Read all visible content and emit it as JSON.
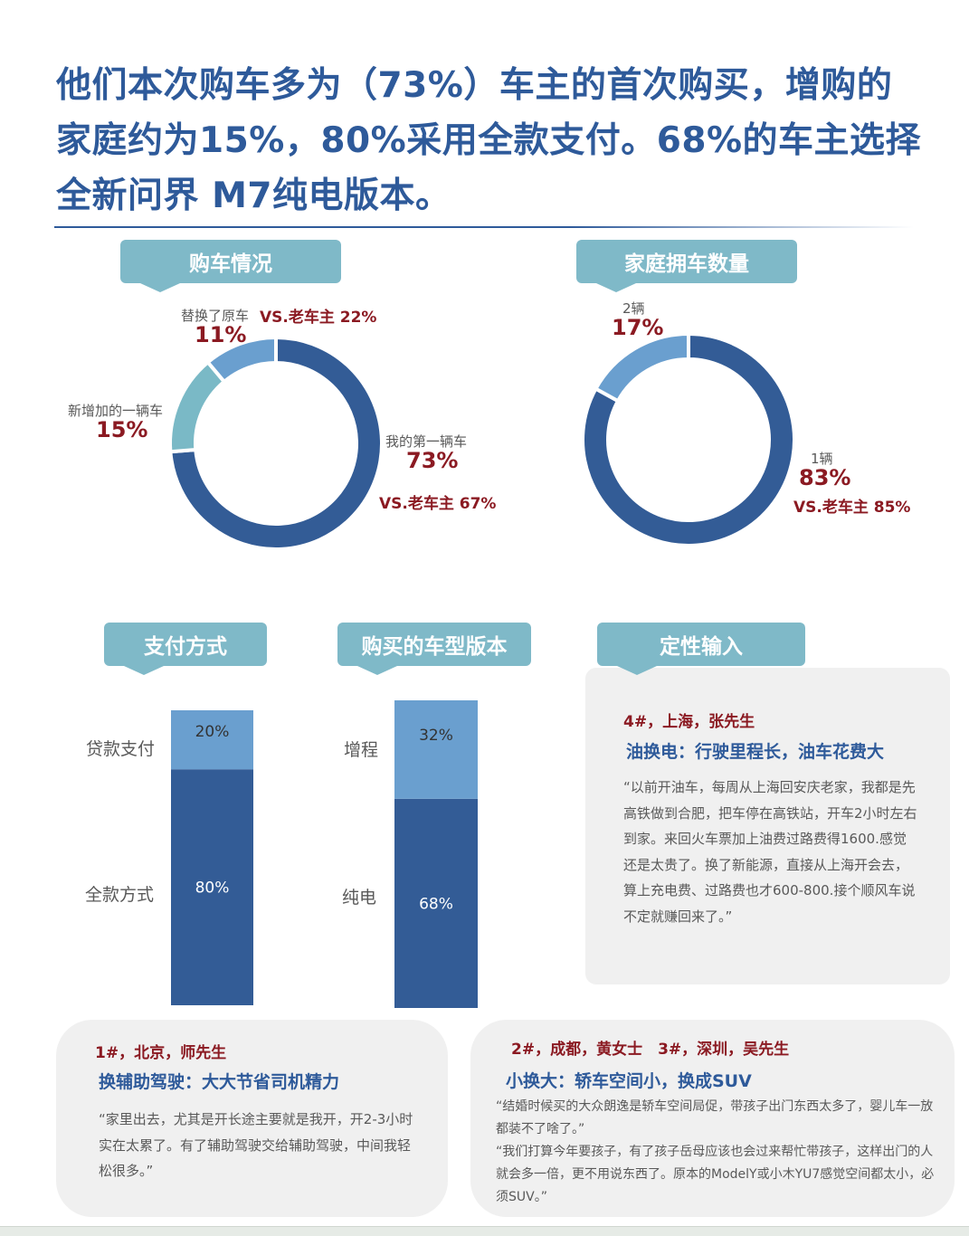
{
  "title": "他们本次购车多为（73%）车主的首次购买，增购的家庭约为15%，80%采用全款支付。68%的车主选择全新问界 M7纯电版本。",
  "colors": {
    "dark": "#335c96",
    "light": "#6a9fcf",
    "teal": "#7ab9c6",
    "accent": "#8b1a22",
    "title": "#2e5a9a",
    "tab": "#7fb9c8"
  },
  "sections": {
    "purchase": "购车情况",
    "household": "家庭拥车数量",
    "payment": "支付方式",
    "version": "购买的车型版本",
    "qualitative": "定性输入"
  },
  "chart_data": [
    {
      "type": "pie",
      "variant": "donut",
      "title": "购车情况",
      "slices": [
        {
          "label": "我的第一辆车",
          "value": 73,
          "display": "73%",
          "vs": "VS.老车主 67%"
        },
        {
          "label": "新增加的一辆车",
          "value": 15,
          "display": "15%"
        },
        {
          "label": "替换了原车",
          "value": 11,
          "display": "11%",
          "vs": "VS.老车主 22%"
        }
      ]
    },
    {
      "type": "pie",
      "variant": "donut",
      "title": "家庭拥车数量",
      "slices": [
        {
          "label": "1辆",
          "value": 83,
          "display": "83%",
          "vs": "VS.老车主 85%"
        },
        {
          "label": "2辆",
          "value": 17,
          "display": "17%"
        }
      ]
    },
    {
      "type": "bar",
      "variant": "stacked-100",
      "title": "支付方式",
      "segments": [
        {
          "label": "全款方式",
          "value": 80,
          "display": "80%"
        },
        {
          "label": "贷款支付",
          "value": 20,
          "display": "20%"
        }
      ]
    },
    {
      "type": "bar",
      "variant": "stacked-100",
      "title": "购买的车型版本",
      "segments": [
        {
          "label": "纯电",
          "value": 68,
          "display": "68%"
        },
        {
          "label": "增程",
          "value": 32,
          "display": "32%"
        }
      ]
    }
  ],
  "quotes": [
    {
      "who": "4#，上海，张先生",
      "head": "油换电：行驶里程长，油车花费大",
      "text": "“以前开油车，每周从上海回安庆老家，我都是先高铁做到合肥，把车停在高铁站，开车2小时左右到家。来回火车票加上油费过路费得1600.感觉还是太贵了。换了新能源，直接从上海开会去，算上充电费、过路费也才600-800.接个顺风车说不定就赚回来了。”"
    },
    {
      "who": "1#，北京，师先生",
      "head": "换辅助驾驶：大大节省司机精力",
      "text": "“家里出去，尤其是开长途主要就是我开，开2-3小时实在太累了。有了辅助驾驶交给辅助驾驶，中间我轻松很多。”"
    },
    {
      "who": "2#，成都，黄女士　3#，深圳，吴先生",
      "head": "小换大：轿车空间小，换成SUV",
      "text": "“结婚时候买的大众朗逸是轿车空间局促，带孩子出门东西太多了，婴儿车一放都装不了啥了。”",
      "text2": "“我们打算今年要孩子，有了孩子岳母应该也会过来帮忙带孩子，这样出门的人就会多一倍，更不用说东西了。原本的ModelY或小木YU7感觉空间都太小，必须SUV。”"
    }
  ]
}
